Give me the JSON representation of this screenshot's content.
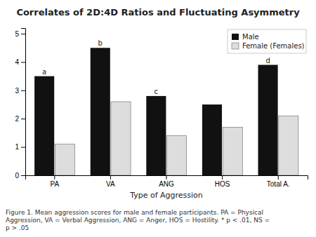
{
  "chart_data": {
    "type": "bar",
    "title": "Correlates of 2D:4D Ratios and Fluctuating Asymmetry",
    "x_label": "Type of Aggression",
    "categories": [
      "PA",
      "VA",
      "ANG",
      "HOS",
      "Total A."
    ],
    "series": [
      {
        "name": "Male",
        "color": "#111111",
        "values": [
          3.5,
          4.5,
          2.8,
          2.5,
          3.9
        ]
      },
      {
        "name": "Female (Females)",
        "color": "#dddddd",
        "values": [
          1.1,
          2.6,
          1.4,
          1.7,
          2.1
        ]
      }
    ],
    "ylim": [
      0,
      5.2
    ],
    "yticks": [
      0,
      1,
      2,
      3,
      4,
      5
    ],
    "grid": false,
    "legend": "upper right",
    "annotations": [
      {
        "text": "a",
        "series": "Male",
        "category": "PA"
      },
      {
        "text": "b",
        "series": "Male",
        "category": "VA"
      },
      {
        "text": "c",
        "series": "Male",
        "category": "ANG"
      },
      {
        "text": "d",
        "series": "Male",
        "category": "Total A."
      }
    ],
    "caption": "Figure 1. Mean aggression scores for male and female participants. PA = Physical\nAggression, VA = Verbal Aggression, ANG = Anger, HOS = Hostility.  * p < .01, NS =\np > .05"
  }
}
